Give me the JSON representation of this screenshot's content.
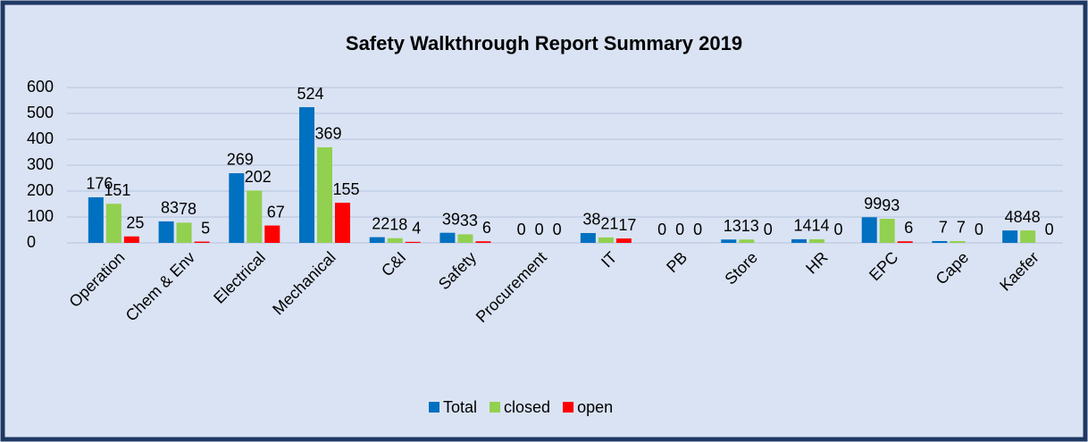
{
  "chart_data": {
    "type": "bar",
    "title": "Safety Walkthrough Report Summary 2019",
    "categories": [
      "Operation",
      "Chem & Env",
      "Electrical",
      "Mechanical",
      "C&I",
      "Safety",
      "Procurement",
      "IT",
      "PB",
      "Store",
      "HR",
      "EPC",
      "Cape",
      "Kaefer"
    ],
    "series": [
      {
        "name": "Total",
        "color": "#0070c0",
        "values": [
          176,
          83,
          269,
          524,
          22,
          39,
          0,
          38,
          0,
          13,
          14,
          99,
          7,
          48
        ]
      },
      {
        "name": "closed",
        "color": "#92d050",
        "values": [
          151,
          78,
          202,
          369,
          18,
          33,
          0,
          21,
          0,
          13,
          14,
          93,
          7,
          48
        ]
      },
      {
        "name": "open",
        "color": "#ff0000",
        "values": [
          25,
          5,
          67,
          155,
          4,
          6,
          0,
          17,
          0,
          0,
          0,
          6,
          0,
          0
        ]
      }
    ],
    "ylim": [
      0,
      600
    ],
    "yticks": [
      0,
      100,
      200,
      300,
      400,
      500,
      600
    ],
    "grid": true,
    "legend": "bottom"
  }
}
